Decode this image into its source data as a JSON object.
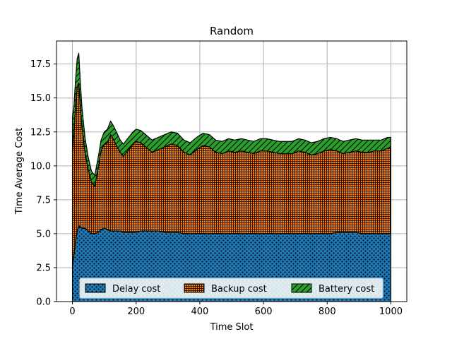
{
  "chart_data": {
    "type": "area",
    "stacked": true,
    "title": "Random",
    "xlabel": "Time Slot",
    "ylabel": "Time Average Cost",
    "xlim": [
      -50,
      1050
    ],
    "ylim": [
      0,
      19.2
    ],
    "xticks": [
      0,
      200,
      400,
      600,
      800,
      1000
    ],
    "yticks": [
      0.0,
      2.5,
      5.0,
      7.5,
      10.0,
      12.5,
      15.0,
      17.5
    ],
    "ytick_labels": [
      "0.0",
      "2.5",
      "5.0",
      "7.5",
      "10.0",
      "12.5",
      "15.0",
      "17.5"
    ],
    "grid": true,
    "legend_position": "lower-center",
    "x": [
      0,
      5,
      10,
      15,
      20,
      25,
      30,
      40,
      50,
      60,
      70,
      80,
      90,
      100,
      110,
      120,
      130,
      140,
      150,
      160,
      170,
      180,
      190,
      200,
      215,
      230,
      250,
      270,
      290,
      310,
      330,
      350,
      370,
      390,
      410,
      430,
      450,
      470,
      490,
      510,
      530,
      550,
      570,
      590,
      610,
      630,
      650,
      670,
      690,
      710,
      730,
      750,
      770,
      790,
      810,
      830,
      850,
      870,
      890,
      910,
      930,
      950,
      970,
      990,
      1000
    ],
    "series": [
      {
        "name": "Delay cost",
        "color": "#1f77b4",
        "hatch": "dots",
        "values": [
          2.6,
          3.5,
          4.5,
          5.2,
          5.6,
          5.5,
          5.4,
          5.4,
          5.2,
          5.0,
          5.0,
          5.1,
          5.3,
          5.4,
          5.3,
          5.2,
          5.2,
          5.2,
          5.2,
          5.1,
          5.1,
          5.1,
          5.1,
          5.1,
          5.2,
          5.2,
          5.2,
          5.2,
          5.1,
          5.1,
          5.1,
          5.0,
          5.0,
          5.0,
          5.0,
          5.0,
          5.0,
          5.0,
          5.0,
          5.0,
          5.0,
          5.0,
          5.0,
          5.0,
          5.0,
          5.0,
          5.0,
          5.0,
          5.0,
          5.0,
          5.0,
          5.0,
          5.0,
          5.0,
          5.0,
          5.1,
          5.1,
          5.1,
          5.1,
          5.0,
          5.0,
          5.0,
          5.0,
          5.0,
          5.0
        ]
      },
      {
        "name": "Backup cost",
        "color": "#ff7f0e",
        "hatch": "grid",
        "values": [
          8.5,
          9.0,
          10.0,
          10.6,
          10.5,
          8.8,
          7.5,
          5.5,
          4.5,
          3.8,
          3.5,
          4.6,
          5.8,
          6.2,
          6.4,
          7.1,
          6.7,
          6.2,
          5.8,
          5.6,
          5.9,
          6.2,
          6.5,
          6.7,
          6.5,
          6.2,
          5.8,
          6.0,
          6.3,
          6.5,
          6.4,
          6.0,
          5.8,
          6.2,
          6.5,
          6.4,
          6.0,
          5.9,
          6.1,
          6.0,
          6.1,
          6.0,
          5.9,
          6.1,
          6.1,
          6.0,
          5.9,
          5.9,
          5.9,
          6.1,
          6.0,
          5.8,
          5.9,
          6.1,
          6.2,
          6.0,
          5.8,
          5.9,
          6.0,
          6.0,
          6.0,
          6.1,
          6.1,
          6.3,
          6.3
        ]
      },
      {
        "name": "Battery cost",
        "color": "#2ca02c",
        "hatch": "diagonal",
        "values": [
          2.5,
          2.0,
          1.9,
          2.1,
          2.2,
          1.8,
          1.4,
          1.1,
          0.9,
          0.8,
          0.8,
          0.8,
          0.8,
          0.9,
          1.0,
          1.0,
          1.0,
          1.0,
          0.9,
          0.9,
          0.9,
          0.9,
          0.9,
          0.9,
          0.9,
          0.9,
          0.9,
          0.9,
          0.9,
          0.9,
          0.9,
          0.9,
          0.9,
          0.9,
          0.9,
          0.9,
          0.9,
          0.9,
          0.9,
          0.9,
          0.9,
          0.9,
          0.9,
          0.9,
          0.9,
          0.9,
          0.9,
          0.9,
          0.9,
          0.9,
          0.9,
          0.9,
          0.9,
          0.9,
          0.9,
          0.9,
          0.9,
          0.9,
          0.9,
          0.9,
          0.9,
          0.8,
          0.8,
          0.8,
          0.8
        ]
      }
    ]
  }
}
